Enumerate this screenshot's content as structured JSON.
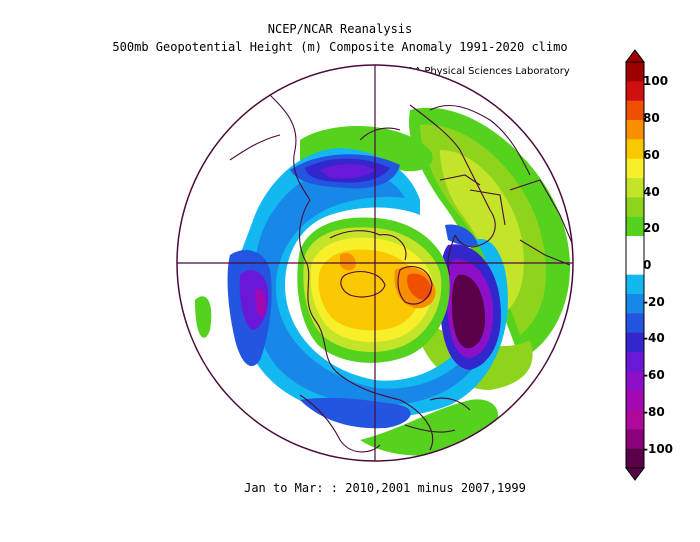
{
  "title_line1": "NCEP/NCAR Reanalysis",
  "title_line2": "500mb Geopotential Height (m) Composite Anomaly 1991-2020 climo",
  "credit": "NOAA Physical Sciences Laboratory",
  "footer": "Jan to Mar: : 2010,2001 minus 2007,1999",
  "colorbar": {
    "labels": [
      "100",
      "80",
      "60",
      "40",
      "20",
      "0",
      "-20",
      "-40",
      "-60",
      "-80",
      "-100"
    ],
    "colors": [
      "#9e0000",
      "#d01010",
      "#ef4f00",
      "#f98f00",
      "#f9c800",
      "#f6ef2a",
      "#c4e42a",
      "#8fd41c",
      "#55d21e",
      "#ffffff",
      "#ffffff",
      "#14b8f0",
      "#1888e8",
      "#2355e0",
      "#3326cc",
      "#6a18d8",
      "#8c10c8",
      "#a00ab0",
      "#b0089a",
      "#8a0078",
      "#5a0048"
    ]
  }
}
